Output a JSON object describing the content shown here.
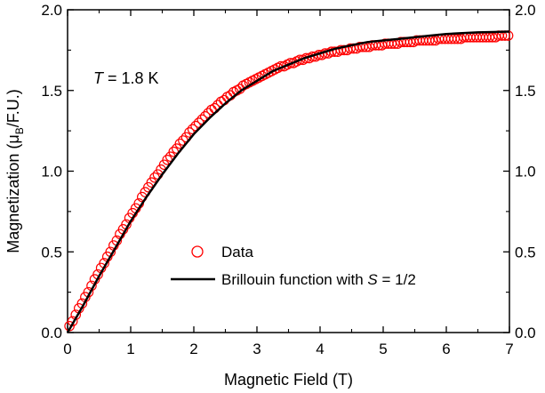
{
  "chart_data": {
    "type": "scatter",
    "xlabel": "Magnetic Field (T)",
    "ylabel_main": "Magnetization (μ",
    "ylabel_sub": "B",
    "ylabel_tail": "/F.U.)",
    "xlim": [
      0,
      7
    ],
    "ylim": [
      0,
      2.0
    ],
    "x_ticks": [
      "0",
      "1",
      "2",
      "3",
      "4",
      "5",
      "6",
      "7"
    ],
    "y_ticks": [
      "0.0",
      "0.5",
      "1.0",
      "1.5",
      "2.0"
    ],
    "y_ticks_right": [
      "0.0",
      "0.5",
      "1.0",
      "1.5",
      "2.0"
    ],
    "annotation": {
      "var": "T",
      "rest": " = 1.8 K"
    },
    "legend": {
      "placement": "lower-right",
      "data_label": "Data",
      "fit_label_prefix": "Brillouin function with ",
      "fit_label_var": "S",
      "fit_label_suffix": " = 1/2"
    },
    "colors": {
      "data": "#ff0000",
      "fit": "#000000"
    },
    "series": [
      {
        "kind": "markers",
        "x": [
          0.03,
          0.08,
          0.13,
          0.18,
          0.23,
          0.28,
          0.33,
          0.38,
          0.43,
          0.48,
          0.53,
          0.58,
          0.63,
          0.68,
          0.73,
          0.78,
          0.83,
          0.88,
          0.93,
          0.98,
          1.03,
          1.08,
          1.13,
          1.18,
          1.23,
          1.28,
          1.33,
          1.38,
          1.43,
          1.48,
          1.53,
          1.58,
          1.63,
          1.68,
          1.73,
          1.78,
          1.83,
          1.88,
          1.93,
          1.98,
          2.03,
          2.08,
          2.13,
          2.18,
          2.23,
          2.28,
          2.33,
          2.38,
          2.43,
          2.48,
          2.53,
          2.58,
          2.63,
          2.68,
          2.73,
          2.78,
          2.83,
          2.88,
          2.93,
          2.98,
          3.03,
          3.08,
          3.13,
          3.18,
          3.23,
          3.28,
          3.33,
          3.38,
          3.43,
          3.48,
          3.53,
          3.58,
          3.63,
          3.68,
          3.73,
          3.78,
          3.83,
          3.88,
          3.93,
          3.98,
          4.03,
          4.08,
          4.13,
          4.18,
          4.23,
          4.28,
          4.33,
          4.38,
          4.43,
          4.48,
          4.53,
          4.58,
          4.63,
          4.68,
          4.73,
          4.78,
          4.83,
          4.88,
          4.93,
          4.98,
          5.03,
          5.08,
          5.13,
          5.18,
          5.23,
          5.28,
          5.33,
          5.38,
          5.43,
          5.48,
          5.53,
          5.58,
          5.63,
          5.68,
          5.73,
          5.78,
          5.83,
          5.88,
          5.93,
          5.98,
          6.03,
          6.08,
          6.13,
          6.18,
          6.23,
          6.28,
          6.33,
          6.38,
          6.43,
          6.48,
          6.53,
          6.58,
          6.63,
          6.68,
          6.73,
          6.78,
          6.83,
          6.88,
          6.93,
          6.98
        ],
        "y": [
          0.04,
          0.07,
          0.11,
          0.15,
          0.18,
          0.22,
          0.25,
          0.29,
          0.33,
          0.36,
          0.4,
          0.43,
          0.47,
          0.5,
          0.54,
          0.57,
          0.61,
          0.64,
          0.67,
          0.71,
          0.74,
          0.77,
          0.8,
          0.84,
          0.87,
          0.9,
          0.93,
          0.96,
          0.98,
          1.01,
          1.04,
          1.07,
          1.09,
          1.12,
          1.14,
          1.17,
          1.19,
          1.21,
          1.24,
          1.26,
          1.28,
          1.3,
          1.32,
          1.34,
          1.36,
          1.38,
          1.39,
          1.41,
          1.43,
          1.44,
          1.46,
          1.47,
          1.49,
          1.5,
          1.51,
          1.53,
          1.54,
          1.55,
          1.56,
          1.57,
          1.58,
          1.59,
          1.6,
          1.61,
          1.62,
          1.63,
          1.64,
          1.65,
          1.65,
          1.66,
          1.67,
          1.67,
          1.68,
          1.69,
          1.69,
          1.7,
          1.7,
          1.71,
          1.71,
          1.72,
          1.72,
          1.73,
          1.73,
          1.74,
          1.74,
          1.74,
          1.75,
          1.75,
          1.75,
          1.76,
          1.76,
          1.76,
          1.77,
          1.77,
          1.77,
          1.77,
          1.78,
          1.78,
          1.78,
          1.78,
          1.79,
          1.79,
          1.79,
          1.79,
          1.79,
          1.8,
          1.8,
          1.8,
          1.8,
          1.8,
          1.81,
          1.81,
          1.81,
          1.81,
          1.81,
          1.81,
          1.81,
          1.82,
          1.82,
          1.82,
          1.82,
          1.82,
          1.82,
          1.82,
          1.82,
          1.83,
          1.83,
          1.83,
          1.83,
          1.83,
          1.83,
          1.83,
          1.83,
          1.83,
          1.83,
          1.83,
          1.84,
          1.84,
          1.84,
          1.84
        ]
      },
      {
        "kind": "line",
        "x": [
          0.0,
          0.25,
          0.5,
          0.75,
          1.0,
          1.25,
          1.5,
          1.75,
          2.0,
          2.25,
          2.5,
          2.75,
          3.0,
          3.25,
          3.5,
          3.75,
          4.0,
          4.25,
          4.5,
          4.75,
          5.0,
          5.25,
          5.5,
          5.75,
          6.0,
          6.25,
          6.5,
          6.75,
          7.0
        ],
        "y": [
          0.0,
          0.17,
          0.35,
          0.52,
          0.69,
          0.84,
          0.98,
          1.11,
          1.23,
          1.33,
          1.42,
          1.5,
          1.56,
          1.62,
          1.66,
          1.7,
          1.73,
          1.76,
          1.78,
          1.8,
          1.81,
          1.82,
          1.83,
          1.84,
          1.85,
          1.855,
          1.86,
          1.862,
          1.865
        ]
      }
    ]
  }
}
